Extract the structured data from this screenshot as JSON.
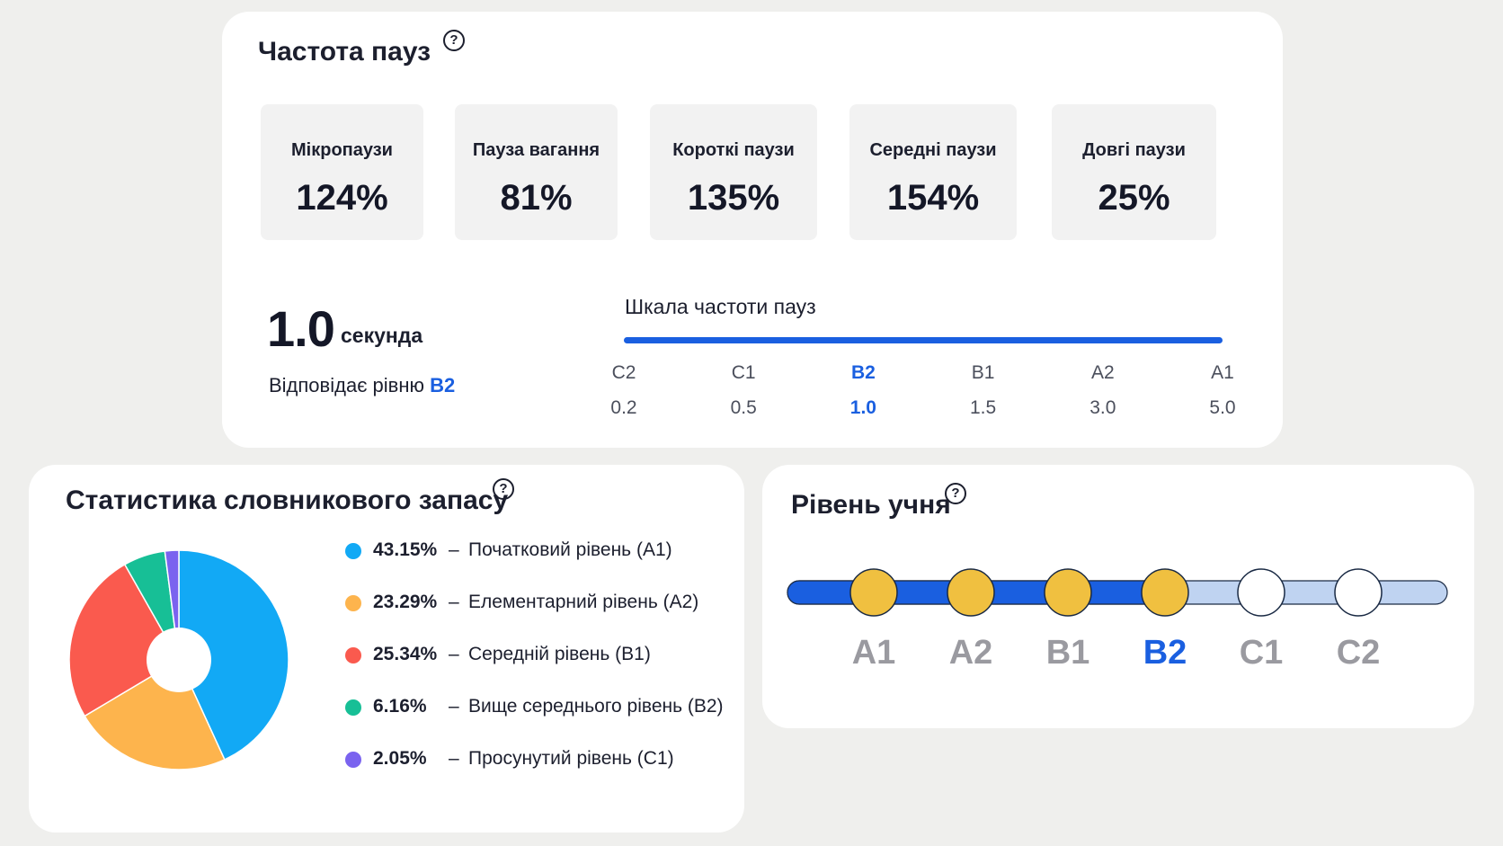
{
  "pause_frequency": {
    "title": "Частота пауз",
    "help_icon": "question-circle-icon",
    "metrics": [
      {
        "label": "Мікропаузи",
        "value": "124%"
      },
      {
        "label": "Пауза вагання",
        "value": "81%"
      },
      {
        "label": "Короткі паузи",
        "value": "135%"
      },
      {
        "label": "Середні паузи",
        "value": "154%"
      },
      {
        "label": "Довгі паузи",
        "value": "25%"
      }
    ],
    "seconds_value": "1.0",
    "seconds_unit": "секунда",
    "level_note_prefix": "Відповідає рівню",
    "level_note_level": "B2",
    "scale": {
      "title": "Шкала частоти пауз",
      "levels": [
        {
          "level": "C2",
          "value": "0.2"
        },
        {
          "level": "C1",
          "value": "0.5"
        },
        {
          "level": "B2",
          "value": "1.0"
        },
        {
          "level": "B1",
          "value": "1.5"
        },
        {
          "level": "A2",
          "value": "3.0"
        },
        {
          "level": "A1",
          "value": "5.0"
        }
      ],
      "active_level": "B2",
      "line_color": "#1a5fe0"
    }
  },
  "vocabulary": {
    "title": "Статистика словникового запасу",
    "help_icon": "question-circle-icon",
    "separator": "–",
    "chart_data": {
      "type": "pie",
      "donut": true,
      "categories": [
        "Початковий рівень (A1)",
        "Елементарний рівень (A2)",
        "Середній рівень (B1)",
        "Вище середнього рівень (B2)",
        "Просунутий рівень (C1)"
      ],
      "values": [
        43.15,
        23.29,
        25.34,
        6.16,
        2.05
      ],
      "labels": [
        "43.15%",
        "23.29%",
        "25.34%",
        "6.16%",
        "2.05%"
      ],
      "colors": [
        "#12a9f5",
        "#fdb44d",
        "#fa5a4e",
        "#17bf96",
        "#7a63ef"
      ],
      "legend_position": "right"
    }
  },
  "student_level": {
    "title": "Рівень учня",
    "help_icon": "question-circle-icon",
    "levels": [
      "A1",
      "A2",
      "B1",
      "B2",
      "C1",
      "C2"
    ],
    "current_level": "B2",
    "colors": {
      "track_filled": "#1a5fe0",
      "track_empty": "#bfd3f1",
      "node_reached": "#f0c040",
      "node_unreached": "#ffffff",
      "label_active": "#1a5fe0",
      "label_inactive": "#9a9aa0"
    }
  }
}
